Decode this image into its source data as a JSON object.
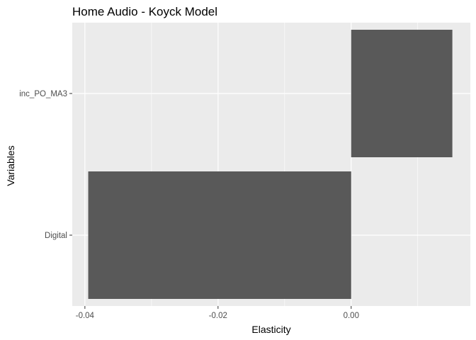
{
  "chart_data": {
    "type": "bar",
    "orientation": "horizontal",
    "title": "Home Audio - Koyck Model",
    "xlabel": "Elasticity",
    "ylabel": "Variables",
    "categories": [
      "Digital",
      "inc_PO_MA3"
    ],
    "values": [
      -0.0395,
      0.0152
    ],
    "xlim": [
      -0.0419,
      0.0179
    ],
    "xticks": [
      -0.04,
      -0.02,
      0.0
    ],
    "xtick_labels": [
      "-0.04",
      "-0.02",
      "0.00"
    ],
    "grid": true,
    "colors": {
      "panel": "#ebebeb",
      "grid_major": "#ffffff",
      "bar": "#595959",
      "tick": "#333333"
    }
  }
}
